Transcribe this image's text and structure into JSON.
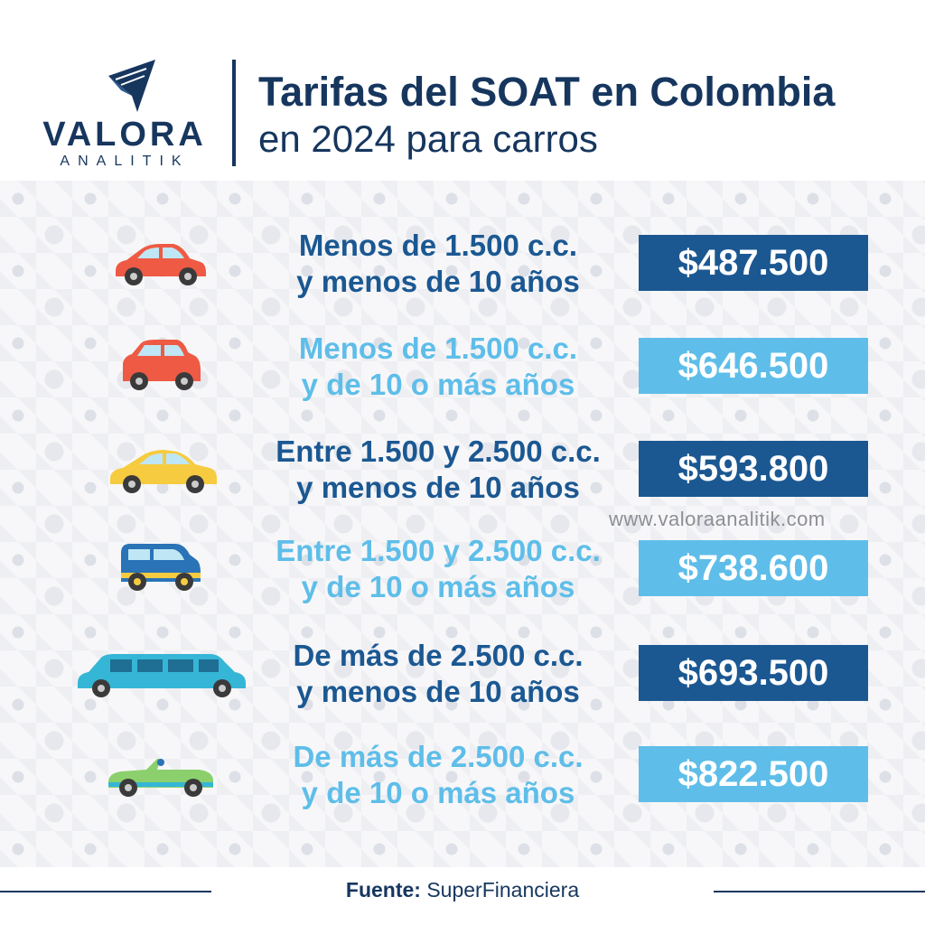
{
  "brand": {
    "name": "VALORA",
    "sub": "ANALITIK"
  },
  "header": {
    "title": "Tarifas del SOAT en Colombia",
    "subtitle": "en 2024 para carros"
  },
  "rows": [
    {
      "line1": "Menos de 1.500 c.c.",
      "line2": "y menos de 10 años",
      "price": "$487.500",
      "tone": "dark",
      "car_icon": "red-sedan-icon",
      "car_color": "#ef5a44"
    },
    {
      "line1": "Menos de 1.500 c.c.",
      "line2": "y de 10 o más años",
      "price": "$646.500",
      "tone": "light",
      "car_icon": "red-hatchback-icon",
      "car_color": "#ef5a44"
    },
    {
      "line1": "Entre 1.500 y 2.500 c.c.",
      "line2": "y menos de 10 años",
      "price": "$593.800",
      "tone": "dark",
      "car_icon": "yellow-coupe-icon",
      "car_color": "#f6cb3f"
    },
    {
      "line1": "Entre 1.500 y 2.500 c.c.",
      "line2": "y de 10 o más años",
      "price": "$738.600",
      "tone": "light",
      "car_icon": "blue-suv-icon",
      "car_color": "#2a73b6"
    },
    {
      "line1": "De más de 2.500 c.c.",
      "line2": "y menos de 10 años",
      "price": "$693.500",
      "tone": "dark",
      "car_icon": "limousine-icon",
      "car_color": "#36b6d6"
    },
    {
      "line1": "De más de 2.500 c.c.",
      "line2": "y de 10 o más años",
      "price": "$822.500",
      "tone": "light",
      "car_icon": "green-convertible-icon",
      "car_color": "#8bd06c"
    }
  ],
  "watermark": "www.valoraanalitik.com",
  "footer": {
    "label": "Fuente:",
    "source": "SuperFinanciera"
  },
  "colors": {
    "navy": "#16365e",
    "dark_blue": "#1b5892",
    "light_blue": "#5ebee9"
  }
}
